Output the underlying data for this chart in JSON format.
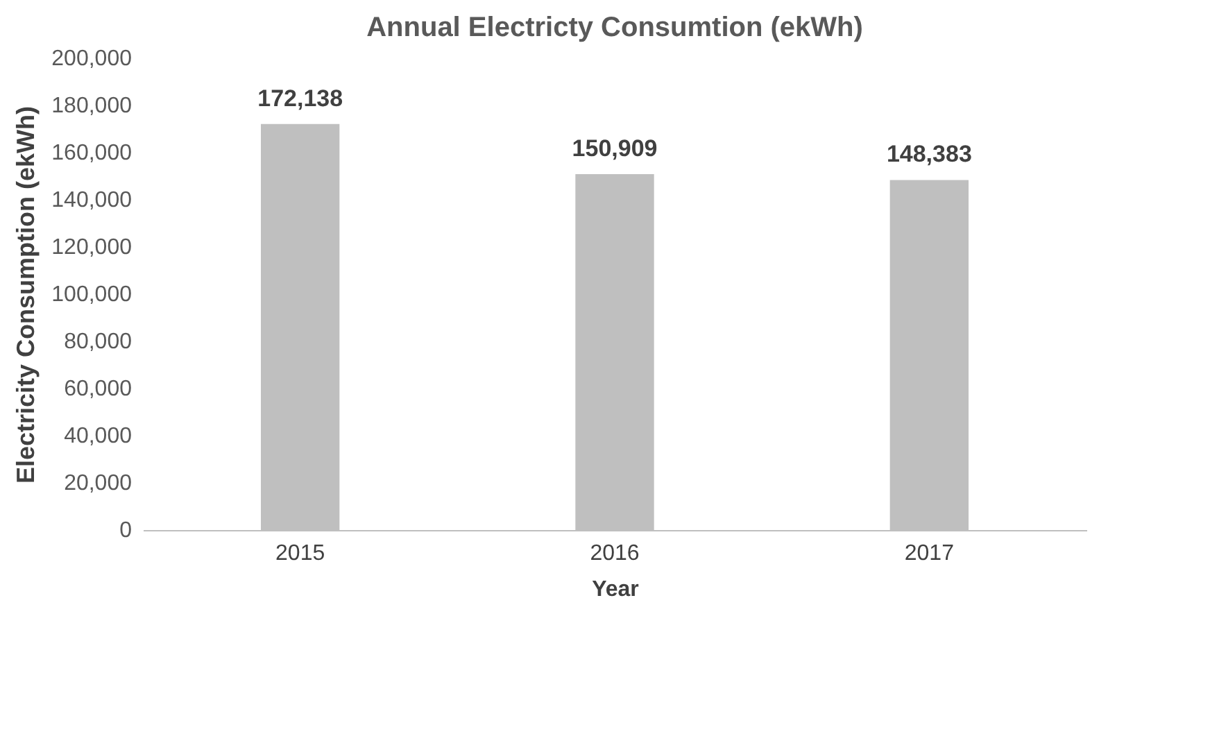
{
  "chart_data": {
    "type": "bar",
    "title": "Annual Electricty Consumtion (ekWh)",
    "xlabel": "Year",
    "ylabel": "Electricity Consumption (ekWh)",
    "categories": [
      "2015",
      "2016",
      "2017"
    ],
    "values": [
      172138,
      150909,
      148383
    ],
    "value_labels": [
      "172,138",
      "150,909",
      "148,383"
    ],
    "color": "#bfbfbf",
    "ylim": [
      0,
      200000
    ],
    "yticks": [
      0,
      {
        "value": 20000,
        "label": "20,000"
      },
      {
        "value": 40000,
        "label": "40,000"
      },
      {
        "value": 60000,
        "label": "60,000"
      },
      {
        "value": 80000,
        "label": "80,000"
      },
      {
        "value": 100000,
        "label": "100,000"
      },
      {
        "value": 120000,
        "label": "120,000"
      },
      {
        "value": 140000,
        "label": "140,000"
      },
      {
        "value": 160000,
        "label": "160,000"
      },
      {
        "value": 180000,
        "label": "180,000"
      },
      {
        "value": 200000,
        "label": "200,000"
      }
    ],
    "grid": false
  }
}
